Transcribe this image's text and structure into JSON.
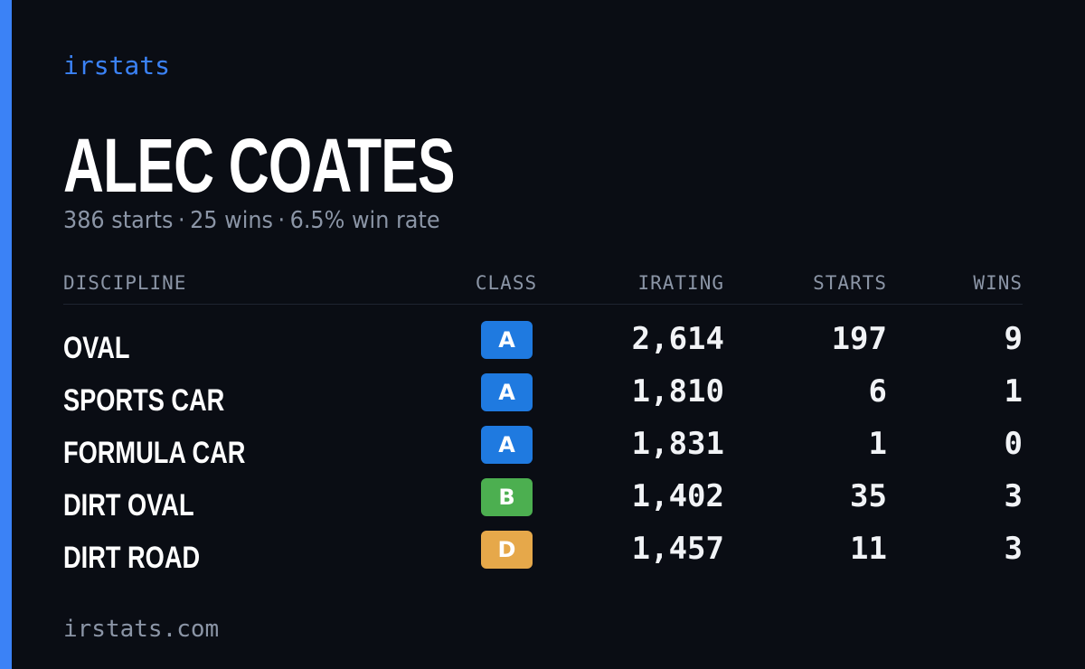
{
  "brand": "irstats",
  "driver": {
    "name": "ALEC COATES",
    "starts_text": "386 starts",
    "wins_text": "25 wins",
    "win_rate_text": "6.5% win rate",
    "separator": "·"
  },
  "table": {
    "headers": {
      "discipline": "DISCIPLINE",
      "class": "CLASS",
      "irating": "IRATING",
      "starts": "STARTS",
      "wins": "WINS"
    },
    "rows": [
      {
        "discipline": "OVAL",
        "class": "A",
        "class_color": "#1f7ae0",
        "irating": "2,614",
        "starts": "197",
        "wins": "9"
      },
      {
        "discipline": "SPORTS CAR",
        "class": "A",
        "class_color": "#1f7ae0",
        "irating": "1,810",
        "starts": "6",
        "wins": "1"
      },
      {
        "discipline": "FORMULA CAR",
        "class": "A",
        "class_color": "#1f7ae0",
        "irating": "1,831",
        "starts": "1",
        "wins": "0"
      },
      {
        "discipline": "DIRT OVAL",
        "class": "B",
        "class_color": "#4caf50",
        "irating": "1,402",
        "starts": "35",
        "wins": "3"
      },
      {
        "discipline": "DIRT ROAD",
        "class": "D",
        "class_color": "#e6a84a",
        "irating": "1,457",
        "starts": "11",
        "wins": "3"
      }
    ]
  },
  "footer": "irstats.com",
  "colors": {
    "accent": "#3b82f6",
    "background": "#0a0d14",
    "muted": "#8b95a6"
  }
}
